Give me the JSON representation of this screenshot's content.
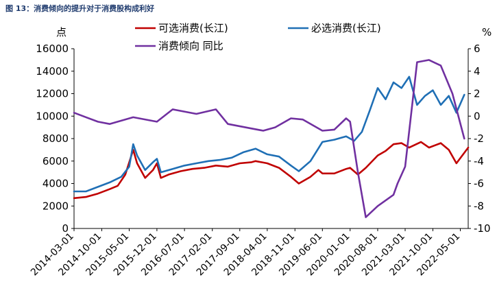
{
  "caption": "图 13：消费倾向的提升对于消费股构成利好",
  "chart_data": {
    "type": "line",
    "left_axis_unit": "点",
    "right_axis_unit": "%",
    "left_ylim": [
      0,
      16000
    ],
    "left_yticks": [
      "0",
      "2000",
      "4000",
      "6000",
      "8000",
      "10000",
      "12000",
      "14000",
      "16000"
    ],
    "right_ylim": [
      -10,
      6
    ],
    "right_yticks": [
      "-10",
      "-8",
      "-6",
      "-4",
      "-2",
      "0",
      "2",
      "4",
      "6"
    ],
    "x_range": [
      "2014-03-01",
      "2022-07-01"
    ],
    "x_ticks": [
      "2014-03-01",
      "2014-10-01",
      "2015-05-01",
      "2015-12-01",
      "2016-07-01",
      "2017-02-01",
      "2017-09-01",
      "2018-04-01",
      "2018-11-01",
      "2019-06-01",
      "2020-01-01",
      "2020-08-01",
      "2021-03-01",
      "2021-10-01",
      "2022-05-01"
    ],
    "grid": false,
    "legend_position": "top",
    "series": [
      {
        "name": "可选消费(长江)",
        "axis": "left",
        "color": "#c00000",
        "points": [
          [
            "2014-03-01",
            2700
          ],
          [
            "2014-06-01",
            2800
          ],
          [
            "2014-09-01",
            3100
          ],
          [
            "2014-12-01",
            3500
          ],
          [
            "2015-02-01",
            3800
          ],
          [
            "2015-04-01",
            4800
          ],
          [
            "2015-06-01",
            7000
          ],
          [
            "2015-07-01",
            5800
          ],
          [
            "2015-09-01",
            4500
          ],
          [
            "2015-11-01",
            5200
          ],
          [
            "2015-12-01",
            5800
          ],
          [
            "2016-01-01",
            4500
          ],
          [
            "2016-03-01",
            4800
          ],
          [
            "2016-06-01",
            5100
          ],
          [
            "2016-09-01",
            5300
          ],
          [
            "2016-12-01",
            5400
          ],
          [
            "2017-03-01",
            5600
          ],
          [
            "2017-06-01",
            5500
          ],
          [
            "2017-09-01",
            5800
          ],
          [
            "2017-12-01",
            5900
          ],
          [
            "2018-01-01",
            6000
          ],
          [
            "2018-04-01",
            5800
          ],
          [
            "2018-07-01",
            5400
          ],
          [
            "2018-10-01",
            4600
          ],
          [
            "2018-12-01",
            4000
          ],
          [
            "2019-03-01",
            4600
          ],
          [
            "2019-05-01",
            5200
          ],
          [
            "2019-06-01",
            4900
          ],
          [
            "2019-09-01",
            4900
          ],
          [
            "2019-12-01",
            5300
          ],
          [
            "2020-01-01",
            5400
          ],
          [
            "2020-03-01",
            4800
          ],
          [
            "2020-05-01",
            5400
          ],
          [
            "2020-08-01",
            6500
          ],
          [
            "2020-10-01",
            6900
          ],
          [
            "2020-12-01",
            7500
          ],
          [
            "2021-02-01",
            7600
          ],
          [
            "2021-04-01",
            7200
          ],
          [
            "2021-07-01",
            7700
          ],
          [
            "2021-09-01",
            7200
          ],
          [
            "2021-12-01",
            7600
          ],
          [
            "2022-02-01",
            7000
          ],
          [
            "2022-04-01",
            5800
          ],
          [
            "2022-07-01",
            7200
          ]
        ]
      },
      {
        "name": "必选消费(长江)",
        "axis": "left",
        "color": "#1f6fb5",
        "points": [
          [
            "2014-03-01",
            3300
          ],
          [
            "2014-06-01",
            3300
          ],
          [
            "2014-09-01",
            3700
          ],
          [
            "2014-12-01",
            4100
          ],
          [
            "2015-03-01",
            4600
          ],
          [
            "2015-05-01",
            5500
          ],
          [
            "2015-06-01",
            7500
          ],
          [
            "2015-07-01",
            6500
          ],
          [
            "2015-09-01",
            5200
          ],
          [
            "2015-11-01",
            5900
          ],
          [
            "2015-12-01",
            6200
          ],
          [
            "2016-01-01",
            5000
          ],
          [
            "2016-04-01",
            5300
          ],
          [
            "2016-07-01",
            5600
          ],
          [
            "2016-10-01",
            5800
          ],
          [
            "2017-01-01",
            6000
          ],
          [
            "2017-04-01",
            6100
          ],
          [
            "2017-07-01",
            6300
          ],
          [
            "2017-10-01",
            6800
          ],
          [
            "2018-01-01",
            7100
          ],
          [
            "2018-04-01",
            6600
          ],
          [
            "2018-07-01",
            6400
          ],
          [
            "2018-10-01",
            5600
          ],
          [
            "2018-12-01",
            5100
          ],
          [
            "2019-03-01",
            6000
          ],
          [
            "2019-06-01",
            7700
          ],
          [
            "2019-09-01",
            7900
          ],
          [
            "2019-12-01",
            8200
          ],
          [
            "2020-02-01",
            7800
          ],
          [
            "2020-04-01",
            8600
          ],
          [
            "2020-06-01",
            10500
          ],
          [
            "2020-08-01",
            12500
          ],
          [
            "2020-10-01",
            11500
          ],
          [
            "2020-12-01",
            13000
          ],
          [
            "2021-02-01",
            12500
          ],
          [
            "2021-04-01",
            13500
          ],
          [
            "2021-06-01",
            11000
          ],
          [
            "2021-08-01",
            11800
          ],
          [
            "2021-10-01",
            12300
          ],
          [
            "2021-12-01",
            11000
          ],
          [
            "2022-02-01",
            11800
          ],
          [
            "2022-04-01",
            10300
          ],
          [
            "2022-06-01",
            11900
          ]
        ]
      },
      {
        "name": "消费倾向 同比",
        "axis": "right",
        "color": "#7030a0",
        "points": [
          [
            "2014-03-01",
            0.3
          ],
          [
            "2014-09-01",
            -0.5
          ],
          [
            "2014-12-01",
            -0.7
          ],
          [
            "2015-06-01",
            -0.1
          ],
          [
            "2015-12-01",
            -0.5
          ],
          [
            "2016-04-01",
            0.6
          ],
          [
            "2016-10-01",
            0.2
          ],
          [
            "2017-03-01",
            0.6
          ],
          [
            "2017-06-01",
            -0.7
          ],
          [
            "2017-12-01",
            -1.1
          ],
          [
            "2018-03-01",
            -1.3
          ],
          [
            "2018-06-01",
            -1.0
          ],
          [
            "2018-10-01",
            -0.2
          ],
          [
            "2019-01-01",
            -0.3
          ],
          [
            "2019-06-01",
            -1.3
          ],
          [
            "2019-09-01",
            -1.2
          ],
          [
            "2019-12-01",
            -0.2
          ],
          [
            "2020-01-01",
            -0.5
          ],
          [
            "2020-03-01",
            -5.0
          ],
          [
            "2020-05-01",
            -9.0
          ],
          [
            "2020-08-01",
            -8.0
          ],
          [
            "2020-12-01",
            -7.0
          ],
          [
            "2021-01-01",
            -6.0
          ],
          [
            "2021-03-01",
            -4.5
          ],
          [
            "2021-06-01",
            4.8
          ],
          [
            "2021-09-01",
            5.0
          ],
          [
            "2021-12-01",
            4.5
          ],
          [
            "2022-03-01",
            2.0
          ],
          [
            "2022-06-01",
            -2.0
          ]
        ]
      }
    ]
  }
}
